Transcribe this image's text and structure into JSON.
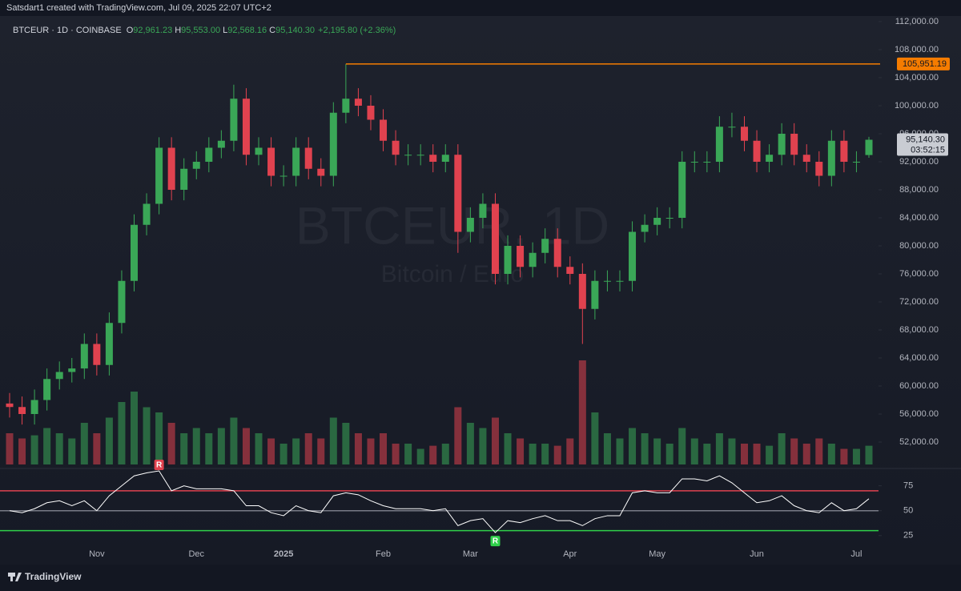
{
  "header": {
    "text": "Satsdart1 created with TradingView.com, Jul 09, 2025 22:07 UTC+2"
  },
  "chart_data": {
    "type": "candlestick",
    "symbol": "BTCEUR · 1D · COINBASE",
    "ohlc_legend": [
      {
        "key": "O",
        "label": "92,961.23"
      },
      {
        "key": "H",
        "label": "95,553.00"
      },
      {
        "key": "L",
        "label": "92,568.16"
      },
      {
        "key": "C",
        "label": "95,140.30"
      }
    ],
    "change_label": "+2,195.80 (+2.36%)",
    "watermark": "BTCEUR, 1D",
    "watermark_subtitle": "Bitcoin / Euro",
    "categories": [
      null,
      null,
      null,
      null,
      null,
      null,
      null,
      "Nov",
      null,
      null,
      null,
      null,
      null,
      null,
      null,
      "Dec",
      null,
      null,
      null,
      null,
      null,
      null,
      "2025",
      null,
      null,
      null,
      null,
      null,
      null,
      null,
      "Feb",
      null,
      null,
      null,
      null,
      null,
      null,
      "Mar",
      null,
      null,
      null,
      null,
      null,
      null,
      null,
      "Apr",
      null,
      null,
      null,
      null,
      null,
      null,
      "May",
      null,
      null,
      null,
      null,
      null,
      null,
      null,
      "Jun",
      null,
      null,
      null,
      null,
      null,
      null,
      null,
      "Jul",
      null
    ],
    "open": [
      57500,
      57000,
      56000,
      58000,
      61000,
      62000,
      62500,
      66000,
      63000,
      69000,
      75000,
      83000,
      86000,
      94000,
      88000,
      91000,
      92000,
      94000,
      95000,
      101000,
      93000,
      94000,
      90000,
      90000,
      94000,
      91000,
      90000,
      99000,
      101000,
      100000,
      98000,
      95000,
      93000,
      93000,
      93000,
      92000,
      93000,
      82000,
      84000,
      86000,
      76000,
      80000,
      77000,
      79000,
      81000,
      77000,
      76000,
      71000,
      75000,
      75000,
      75000,
      82000,
      83000,
      84000,
      84000,
      92000,
      92000,
      92000,
      97000,
      97000,
      95000,
      92000,
      93000,
      96000,
      93000,
      92000,
      90000,
      95000,
      92000,
      92961.23
    ],
    "high": [
      59000,
      58500,
      59500,
      62500,
      63500,
      64000,
      67500,
      67500,
      70500,
      76500,
      84500,
      87500,
      95500,
      95500,
      92500,
      93500,
      95500,
      96500,
      103000,
      102500,
      95500,
      95500,
      91500,
      95500,
      95500,
      92500,
      100500,
      105951.19,
      102500,
      101500,
      99500,
      96500,
      94500,
      94500,
      94500,
      94500,
      94500,
      85500,
      87500,
      87500,
      81500,
      81500,
      80500,
      82500,
      82500,
      78500,
      77500,
      76500,
      76500,
      76500,
      83500,
      84500,
      85500,
      85500,
      93500,
      93500,
      93500,
      98500,
      99000,
      98500,
      96500,
      94500,
      97500,
      97500,
      94500,
      93500,
      96500,
      96500,
      93500,
      95553
    ],
    "low": [
      55500,
      54500,
      54500,
      56500,
      59500,
      60500,
      61000,
      61500,
      61500,
      67500,
      73500,
      81500,
      84500,
      86500,
      86500,
      89500,
      90500,
      92500,
      93500,
      91500,
      91500,
      88500,
      88500,
      88500,
      89500,
      88500,
      88500,
      97500,
      98500,
      96500,
      93500,
      91500,
      91500,
      91500,
      90500,
      90500,
      79000,
      80500,
      82500,
      74500,
      74500,
      75500,
      75500,
      77500,
      75500,
      74500,
      66000,
      69500,
      73500,
      73500,
      73500,
      80500,
      81500,
      82500,
      82500,
      90500,
      90500,
      90500,
      95500,
      93500,
      90500,
      90500,
      91500,
      91500,
      90500,
      88500,
      88500,
      90500,
      90500,
      92568.16
    ],
    "close": [
      57000,
      56000,
      58000,
      61000,
      62000,
      62500,
      66000,
      63000,
      69000,
      75000,
      83000,
      86000,
      94000,
      88000,
      91000,
      92000,
      94000,
      95000,
      101000,
      93000,
      94000,
      90000,
      90000,
      94000,
      91000,
      90000,
      99000,
      101000,
      100000,
      98000,
      95000,
      93000,
      93000,
      93000,
      92000,
      93000,
      82000,
      84000,
      86000,
      76000,
      80000,
      77000,
      79000,
      81000,
      77000,
      76000,
      71000,
      75000,
      75000,
      75000,
      82000,
      83000,
      84000,
      84000,
      92000,
      92000,
      92000,
      97000,
      97000,
      95000,
      92000,
      93000,
      96000,
      93000,
      92000,
      90000,
      95000,
      92000,
      92000,
      95140.3
    ],
    "up_color": "#3aa757",
    "down_color": "#e0424f",
    "ylim": [
      48800,
      112800
    ],
    "yticks": [
      {
        "value": 52000,
        "label": "52,000.00"
      },
      {
        "value": 56000,
        "label": "56,000.00"
      },
      {
        "value": 60000,
        "label": "60,000.00"
      },
      {
        "value": 64000,
        "label": "64,000.00"
      },
      {
        "value": 68000,
        "label": "68,000.00"
      },
      {
        "value": 72000,
        "label": "72,000.00"
      },
      {
        "value": 76000,
        "label": "76,000.00"
      },
      {
        "value": 80000,
        "label": "80,000.00"
      },
      {
        "value": 84000,
        "label": "84,000.00"
      },
      {
        "value": 88000,
        "label": "88,000.00"
      },
      {
        "value": 92000,
        "label": "92,000.00"
      },
      {
        "value": 96000,
        "label": "96,000.00"
      },
      {
        "value": 100000,
        "label": "100,000.00"
      },
      {
        "value": 104000,
        "label": "104,000.00"
      },
      {
        "value": 108000,
        "label": "108,000.00"
      },
      {
        "value": 112000,
        "label": "112,000.00"
      }
    ],
    "price_line": {
      "value": 105951.19,
      "label": "105,951.19",
      "color": "#f57c00"
    },
    "last_price": {
      "label": "95,140.30",
      "countdown": "03:52:15"
    },
    "volume": {
      "values": [
        30,
        25,
        28,
        35,
        30,
        25,
        40,
        30,
        45,
        60,
        70,
        55,
        50,
        40,
        30,
        35,
        30,
        35,
        45,
        35,
        30,
        25,
        20,
        25,
        30,
        25,
        45,
        40,
        30,
        25,
        30,
        20,
        20,
        15,
        18,
        20,
        55,
        40,
        35,
        45,
        30,
        25,
        20,
        20,
        18,
        25,
        100,
        50,
        30,
        25,
        35,
        30,
        25,
        20,
        35,
        25,
        20,
        30,
        25,
        20,
        20,
        18,
        30,
        25,
        20,
        25,
        20,
        15,
        15,
        18
      ],
      "ylim": [
        0,
        100
      ]
    },
    "rsi": {
      "values": [
        50,
        48,
        52,
        58,
        60,
        55,
        60,
        50,
        65,
        75,
        85,
        88,
        90,
        70,
        75,
        72,
        72,
        72,
        70,
        55,
        55,
        48,
        45,
        55,
        50,
        48,
        65,
        68,
        66,
        60,
        55,
        52,
        52,
        52,
        50,
        52,
        35,
        40,
        42,
        28,
        40,
        38,
        42,
        45,
        40,
        40,
        35,
        42,
        45,
        45,
        68,
        70,
        68,
        68,
        82,
        82,
        80,
        85,
        78,
        68,
        58,
        60,
        65,
        55,
        50,
        48,
        58,
        50,
        52,
        62
      ],
      "color": "#ffffff",
      "ylim": [
        16,
        90
      ],
      "yticks": [
        25,
        50,
        75
      ],
      "levels": [
        {
          "value": 70,
          "color": "#e0424f"
        },
        {
          "value": 50,
          "color": "#787b86"
        },
        {
          "value": 30,
          "color": "#2fd04a"
        }
      ],
      "signals": [
        {
          "label": "R",
          "at": 12,
          "color": "#e0424f"
        },
        {
          "label": "R",
          "at": 39,
          "color": "#2fd04a"
        }
      ]
    }
  },
  "footer": {
    "brand": "TradingView"
  }
}
